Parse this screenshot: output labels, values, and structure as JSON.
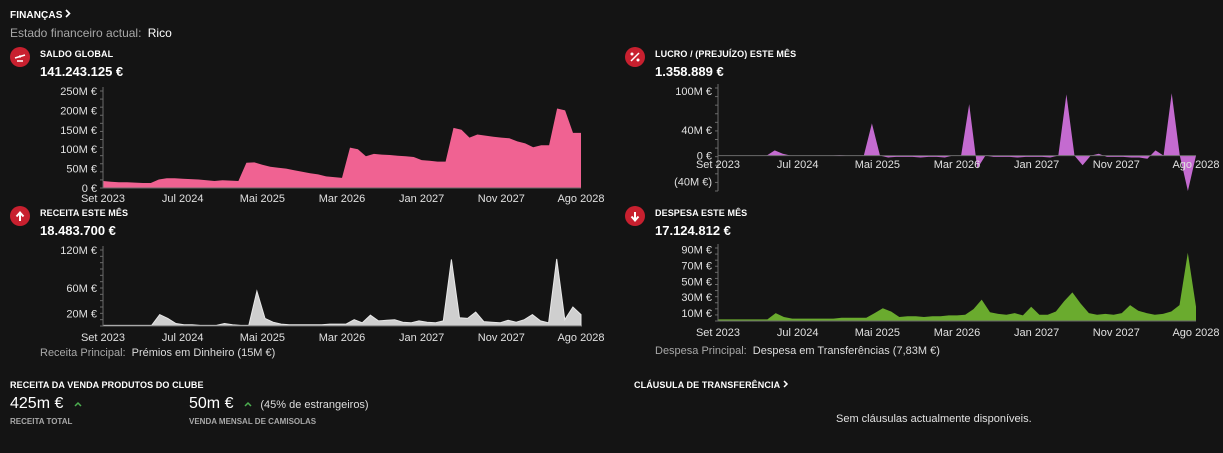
{
  "header": {
    "title": "FINANÇAS",
    "status_label": "Estado financeiro actual:",
    "status_value": "Rico"
  },
  "colors": {
    "background": "#141414",
    "icon_red": "#c8202f",
    "saldo": "#f06292",
    "lucro": "#c46bd0",
    "receita": "#cfcfcf",
    "despesa": "#6aab2e",
    "up_arrow": "#4caf50"
  },
  "panels": {
    "saldo": {
      "icon": "scale-icon",
      "title": "SALDO GLOBAL",
      "value": "141.243.125 €"
    },
    "lucro": {
      "icon": "percent-icon",
      "title": "LUCRO / (PREJUÍZO) ESTE MÊS",
      "value": "1.358.889 €"
    },
    "receita": {
      "icon": "arrow-up-icon",
      "title": "RECEITA ESTE MÊS",
      "value": "18.483.700 €",
      "footnote_label": "Receita Principal:",
      "footnote_value": "Prémios em Dinheiro (15M €)"
    },
    "despesa": {
      "icon": "arrow-down-icon",
      "title": "DESPESA ESTE MÊS",
      "value": "17.124.812 €",
      "footnote_label": "Despesa Principal:",
      "footnote_value": "Despesa em Transferências (7,83M €)"
    }
  },
  "merch": {
    "title": "RECEITA DA VENDA PRODUTOS DO CLUBE",
    "total_value": "425m €",
    "total_label": "RECEITA TOTAL",
    "shirts_value": "50m €",
    "shirts_note": "(45% de estrangeiros)",
    "shirts_label": "VENDA MENSAL DE CAMISOLAS",
    "trend_icon": "caret-up-icon"
  },
  "clause": {
    "title": "CLÁUSULA DE TRANSFERÊNCIA",
    "empty_text": "Sem cláusulas actualmente disponíveis."
  },
  "chart_data": [
    {
      "id": "saldo",
      "type": "area",
      "x_ticks": [
        "Set 2023",
        "Jul 2024",
        "Mai 2025",
        "Mar 2026",
        "Jan 2027",
        "Nov 2027",
        "Ago 2028"
      ],
      "y_ticks": [
        "0 €",
        "50M €",
        "100M €",
        "150M €",
        "200M €",
        "250M €"
      ],
      "y_tick_values": [
        0,
        50,
        100,
        150,
        200,
        250
      ],
      "ylim": [
        0,
        250
      ],
      "unit": "M €",
      "values": [
        18,
        16,
        15,
        15,
        14,
        13,
        13,
        22,
        25,
        25,
        24,
        23,
        22,
        20,
        18,
        20,
        19,
        18,
        65,
        66,
        60,
        55,
        52,
        50,
        46,
        42,
        38,
        35,
        30,
        28,
        26,
        104,
        100,
        82,
        88,
        86,
        85,
        83,
        82,
        80,
        72,
        70,
        68,
        68,
        155,
        150,
        130,
        138,
        135,
        132,
        130,
        128,
        120,
        115,
        105,
        110,
        110,
        205,
        200,
        142,
        142
      ],
      "grid": false
    },
    {
      "id": "lucro",
      "type": "area",
      "x_ticks": [
        "Set 2023",
        "Jul 2024",
        "Mai 2025",
        "Mar 2026",
        "Jan 2027",
        "Nov 2027",
        "Ago 2028"
      ],
      "y_ticks": [
        "100M €",
        "40M €",
        "0 €",
        "(40M €)"
      ],
      "y_tick_values": [
        100,
        40,
        0,
        -40
      ],
      "ylim": [
        -55,
        105
      ],
      "unit": "M €",
      "values": [
        0,
        0,
        0,
        0,
        0,
        0,
        0,
        8,
        3,
        0,
        0,
        0,
        0,
        0,
        0,
        1,
        0,
        0,
        0,
        50,
        0,
        -3,
        -2,
        -2,
        -2,
        -3,
        -2,
        -2,
        -3,
        0,
        0,
        80,
        -20,
        0,
        -2,
        -2,
        -2,
        -3,
        -2,
        -2,
        -2,
        -3,
        0,
        95,
        0,
        -15,
        0,
        3,
        -2,
        -2,
        -2,
        -3,
        -3,
        -5,
        8,
        0,
        97,
        0,
        -55,
        0
      ],
      "grid": false
    },
    {
      "id": "receita",
      "type": "area",
      "x_ticks": [
        "Set 2023",
        "Jul 2024",
        "Mai 2025",
        "Mar 2026",
        "Jan 2027",
        "Nov 2027",
        "Ago 2028"
      ],
      "y_ticks": [
        "20M €",
        "60M €",
        "120M €"
      ],
      "y_tick_values": [
        20,
        60,
        120
      ],
      "ylim": [
        0,
        120
      ],
      "unit": "M €",
      "values": [
        1,
        1,
        1,
        1,
        1,
        1,
        1,
        18,
        12,
        4,
        2,
        2,
        1,
        1,
        1,
        4,
        2,
        1,
        1,
        55,
        12,
        6,
        3,
        2,
        2,
        2,
        2,
        2,
        3,
        3,
        3,
        10,
        5,
        17,
        8,
        9,
        10,
        6,
        5,
        8,
        6,
        5,
        8,
        105,
        13,
        12,
        22,
        7,
        6,
        5,
        9,
        6,
        10,
        18,
        8,
        5,
        106,
        10,
        30,
        18
      ],
      "grid": false
    },
    {
      "id": "despesa",
      "type": "area",
      "x_ticks": [
        "Set 2023",
        "Jul 2024",
        "Mai 2025",
        "Mar 2026",
        "Jan 2027",
        "Nov 2027",
        "Ago 2028"
      ],
      "y_ticks": [
        "10M €",
        "30M €",
        "50M €",
        "70M €",
        "90M €"
      ],
      "y_tick_values": [
        10,
        30,
        50,
        70,
        90
      ],
      "ylim": [
        0,
        92
      ],
      "unit": "M €",
      "values": [
        2,
        2,
        2,
        2,
        2,
        2,
        2,
        10,
        5,
        3,
        3,
        3,
        3,
        3,
        3,
        4,
        4,
        4,
        4,
        10,
        16,
        12,
        5,
        6,
        6,
        5,
        6,
        6,
        7,
        7,
        8,
        15,
        27,
        11,
        9,
        8,
        10,
        7,
        18,
        8,
        8,
        12,
        25,
        36,
        22,
        10,
        8,
        9,
        8,
        10,
        20,
        13,
        10,
        8,
        9,
        12,
        20,
        86,
        18
      ]
    }
  ]
}
